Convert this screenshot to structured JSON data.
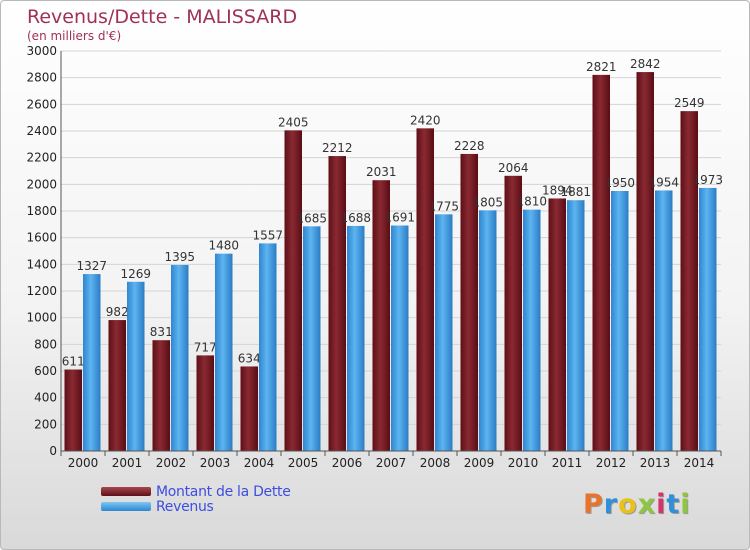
{
  "chart_data": {
    "type": "bar",
    "title": "Revenus/Dette - MALISSARD",
    "subtitle": "(en milliers d'€)",
    "categories": [
      "2000",
      "2001",
      "2002",
      "2003",
      "2004",
      "2005",
      "2006",
      "2007",
      "2008",
      "2009",
      "2010",
      "2011",
      "2012",
      "2013",
      "2014"
    ],
    "series": [
      {
        "name": "Montant de la Dette",
        "color": "#7a1a24",
        "values": [
          611,
          982,
          831,
          717,
          634,
          2405,
          2212,
          2031,
          2420,
          2228,
          2064,
          1894,
          2821,
          2842,
          2549
        ]
      },
      {
        "name": "Revenus",
        "color": "#3f9ee6",
        "values": [
          1327,
          1269,
          1395,
          1480,
          1557,
          1685,
          1688,
          1691,
          1775,
          1805,
          1810,
          1881,
          1950,
          1954,
          1973
        ]
      }
    ],
    "ylim": [
      0,
      3000
    ],
    "yticks": [
      0,
      200,
      400,
      600,
      800,
      1000,
      1200,
      1400,
      1600,
      1800,
      2000,
      2200,
      2400,
      2600,
      2800,
      3000
    ],
    "grid": true,
    "legend_position": "bottom-left"
  },
  "logo": {
    "letters": [
      "P",
      "r",
      "o",
      "x",
      "i",
      "t",
      "i"
    ],
    "colors": [
      "#e8732a",
      "#2f8fd8",
      "#e8c21a",
      "#8fc63f",
      "#d6336c",
      "#2f8fd8",
      "#8fc63f"
    ]
  }
}
